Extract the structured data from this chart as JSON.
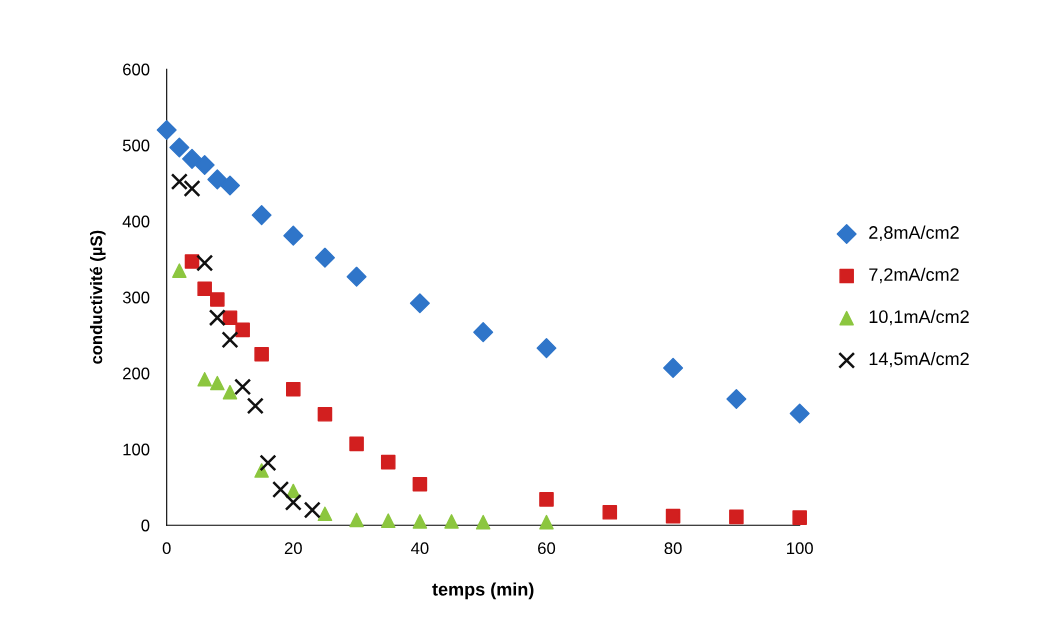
{
  "chart_data": {
    "type": "scatter",
    "xlabel": "temps (min)",
    "ylabel": "conductivité (µS)",
    "xlim": [
      0,
      100
    ],
    "xticks": [
      0,
      20,
      40,
      60,
      80,
      100
    ],
    "ylim": [
      0,
      600
    ],
    "yticks": [
      0,
      100,
      200,
      300,
      400,
      500,
      600
    ],
    "grid": false,
    "legend": "right",
    "series": [
      {
        "name": "2,8mA/cm2",
        "color": "#2f75c9",
        "marker": "diamond",
        "x": [
          0,
          2,
          4,
          6,
          8,
          10,
          15,
          20,
          25,
          30,
          40,
          50,
          60,
          80,
          90,
          100
        ],
        "values": [
          520,
          497,
          482,
          474,
          455,
          447,
          408,
          381,
          352,
          327,
          292,
          254,
          233,
          207,
          166,
          147
        ]
      },
      {
        "name": "7,2mA/cm2",
        "color": "#d21f1f",
        "marker": "square",
        "x": [
          4,
          6,
          8,
          10,
          12,
          15,
          20,
          25,
          30,
          35,
          40,
          60,
          70,
          80,
          90,
          100
        ],
        "values": [
          347,
          311,
          297,
          273,
          257,
          225,
          179,
          146,
          107,
          83,
          54,
          34,
          17,
          12,
          11,
          10
        ]
      },
      {
        "name": "10,1mA/cm2",
        "color": "#8cc63f",
        "marker": "triangle",
        "x": [
          2,
          6,
          8,
          10,
          15,
          20,
          25,
          30,
          35,
          40,
          45,
          50,
          60
        ],
        "values": [
          335,
          192,
          187,
          175,
          72,
          45,
          15,
          7,
          6,
          5,
          5,
          4,
          4
        ]
      },
      {
        "name": "14,5mA/cm2",
        "color": "#111111",
        "marker": "cross",
        "x": [
          2,
          4,
          6,
          8,
          10,
          12,
          14,
          16,
          18,
          20,
          23
        ],
        "values": [
          452,
          443,
          345,
          273,
          244,
          182,
          157,
          82,
          47,
          30,
          20
        ]
      }
    ]
  }
}
